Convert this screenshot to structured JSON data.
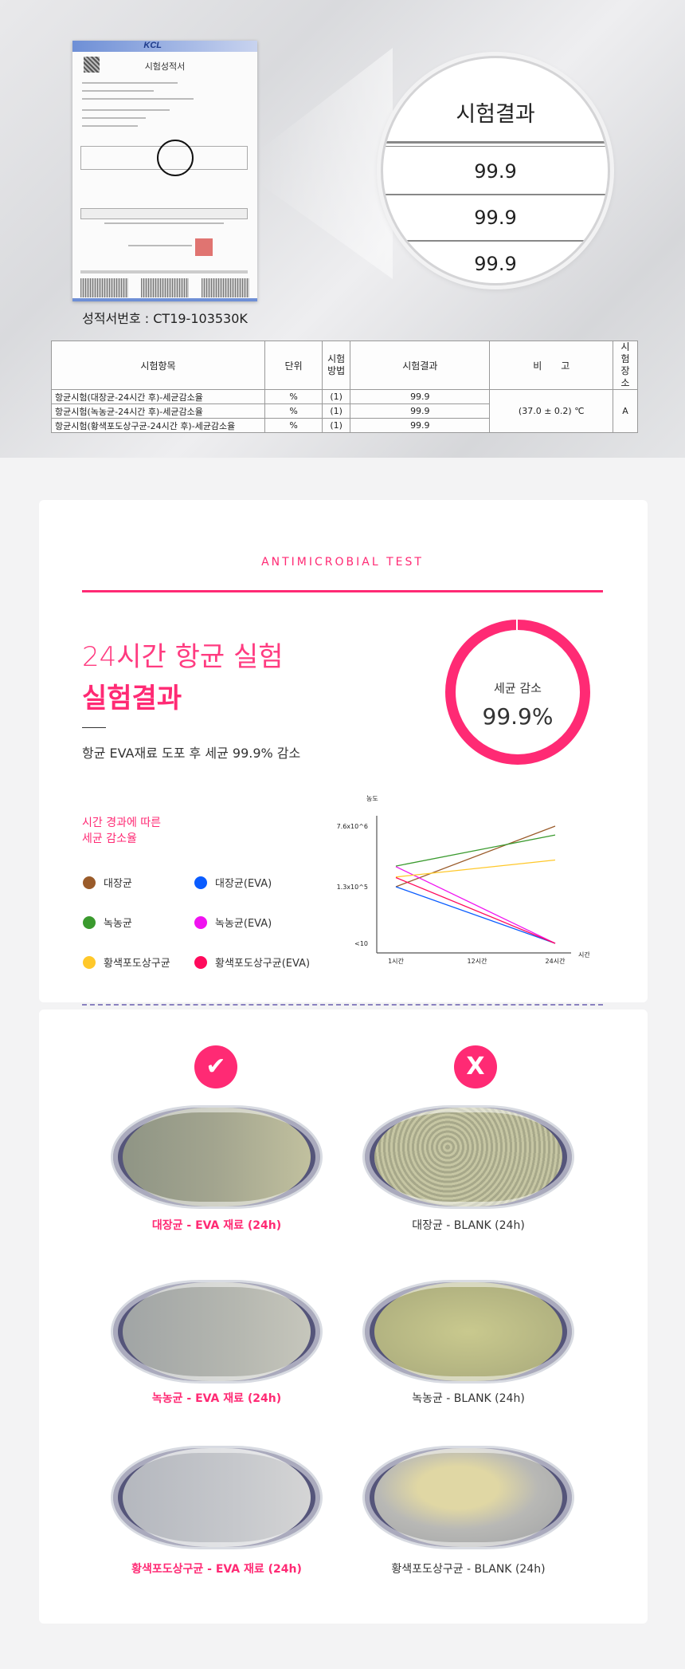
{
  "certificate": {
    "logo": "KCL",
    "title": "시험성적서",
    "number_caption": "성적서번호 : CT19-103530K"
  },
  "magnifier": {
    "header": "시험결과",
    "values": [
      "99.9",
      "99.9",
      "99.9"
    ]
  },
  "result_table": {
    "headers": [
      "시험항목",
      "단위",
      "시험\n방법",
      "시험결과",
      "비　　고",
      "시험\n장소"
    ],
    "rows": [
      {
        "item": "항균시험(대장균-24시간 후)-세균감소율",
        "unit": "%",
        "method": "(1)",
        "result": "99.9"
      },
      {
        "item": "항균시험(녹농균-24시간 후)-세균감소율",
        "unit": "%",
        "method": "(1)",
        "result": "99.9"
      },
      {
        "item": "항균시험(황색포도상구균-24시간 후)-세균감소율",
        "unit": "%",
        "method": "(1)",
        "result": "99.9"
      }
    ],
    "remark": "(37.0 ± 0.2) ℃",
    "place": "A"
  },
  "section": {
    "eyebrow": "ANTIMICROBIAL TEST",
    "title_line1": "24시간 항균 실험",
    "title_line2": "실험결과",
    "description": "항균 EVA재료 도포 후 세균 99.9% 감소",
    "ring": {
      "label": "세균 감소",
      "value": "99.9%",
      "percent": 99.9,
      "color": "#ff2a74"
    },
    "legend_title_1": "시간 경과에 따른",
    "legend_title_2": "세균 감소율"
  },
  "chart_data": {
    "type": "line",
    "ylabel": "농도",
    "xlabel": "시간",
    "categories": [
      "1시간",
      "12시간",
      "24시간"
    ],
    "y_ticks": [
      "<10",
      "1.3x10^5",
      "7.6x10^6"
    ],
    "y_scale": "log",
    "legend": "left",
    "grid": false,
    "series": [
      {
        "name": "대장균",
        "color": "#9a5b2a",
        "x": [
          "1시간",
          "24시간"
        ],
        "values": [
          130000,
          7600000
        ]
      },
      {
        "name": "대장균(EVA)",
        "color": "#0a5cff",
        "x": [
          "1시간",
          "24시간"
        ],
        "values": [
          130000,
          10
        ]
      },
      {
        "name": "녹농균",
        "color": "#3a9a2e",
        "x": [
          "1시간",
          "24시간"
        ],
        "values": [
          520000,
          4200000
        ]
      },
      {
        "name": "녹농균(EVA)",
        "color": "#f012f0",
        "x": [
          "1시간",
          "24시간"
        ],
        "values": [
          500000,
          10
        ]
      },
      {
        "name": "황색포도상구균",
        "color": "#ffc82a",
        "x": [
          "1시간",
          "24시간"
        ],
        "values": [
          250000,
          780000
        ]
      },
      {
        "name": "황색포도상구균(EVA)",
        "color": "#ff0a5c",
        "x": [
          "1시간",
          "24시간"
        ],
        "values": [
          240000,
          10
        ]
      }
    ]
  },
  "comparison": {
    "pass_icon": "check-icon",
    "fail_icon": "x-icon",
    "pass_glyph": "✔",
    "fail_glyph": "X",
    "rows": [
      {
        "eva": "대장균 - EVA 재료 (24h)",
        "blank": "대장균 - BLANK (24h)"
      },
      {
        "eva": "녹농균 - EVA 재료 (24h)",
        "blank": "녹농균 - BLANK (24h)"
      },
      {
        "eva": "황색포도상구균 - EVA 재료 (24h)",
        "blank": "황색포도상구균 - BLANK (24h)"
      }
    ]
  }
}
